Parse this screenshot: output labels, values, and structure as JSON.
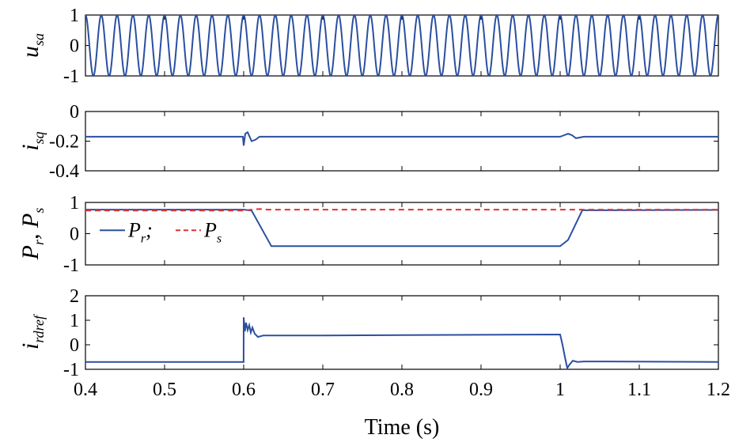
{
  "chart_data": [
    {
      "type": "line",
      "ylabel": "u",
      "ylabel_sub": "sa",
      "ylim": [
        -1,
        1
      ],
      "yticks": [
        "1",
        "0",
        "-1"
      ],
      "xlim": [
        0.4,
        1.2
      ],
      "series": [
        {
          "color": "#2b4fa0",
          "signal": "sinusoid",
          "frequency_hz": 50,
          "amplitude": 1,
          "x": [
            0.4,
            0.6,
            1.0,
            1.2
          ],
          "y": [
            0,
            0,
            0,
            0
          ]
        }
      ]
    },
    {
      "type": "line",
      "ylabel": "i",
      "ylabel_sub": "sq",
      "ylim": [
        -0.4,
        0
      ],
      "yticks": [
        "0",
        "-0.2",
        "-0.4"
      ],
      "xlim": [
        0.4,
        1.2
      ],
      "series": [
        {
          "color": "#2b4fa0",
          "x": [
            0.4,
            0.599,
            0.6,
            0.602,
            0.605,
            0.61,
            0.615,
            0.62,
            0.63,
            1.0,
            1.005,
            1.01,
            1.015,
            1.02,
            1.03,
            1.2
          ],
          "y": [
            -0.17,
            -0.17,
            -0.23,
            -0.15,
            -0.14,
            -0.2,
            -0.19,
            -0.17,
            -0.17,
            -0.17,
            -0.16,
            -0.15,
            -0.16,
            -0.18,
            -0.17,
            -0.17
          ]
        }
      ]
    },
    {
      "type": "line",
      "ylabel": "P",
      "ylabel_sub1": "r",
      "ylabel_sep": ", P",
      "ylabel_sub2": "s",
      "ylim": [
        -1,
        1
      ],
      "yticks": [
        "1",
        "0",
        "-1"
      ],
      "xlim": [
        0.4,
        1.2
      ],
      "legend": {
        "placement": "center-left",
        "entries": [
          "P",
          "P"
        ],
        "subs": [
          "r",
          "s"
        ],
        "separator": ";"
      },
      "series": [
        {
          "color": "#2b4fa0",
          "style": "solid",
          "x": [
            0.4,
            0.6,
            0.61,
            0.635,
            1.0,
            1.01,
            1.028,
            1.2
          ],
          "y": [
            0.77,
            0.77,
            0.74,
            -0.4,
            -0.4,
            -0.2,
            0.75,
            0.76
          ]
        },
        {
          "color": "#e03030",
          "style": "dashed",
          "x": [
            0.4,
            0.6,
            0.61,
            0.62,
            0.63,
            1.2
          ],
          "y": [
            0.74,
            0.74,
            0.77,
            0.79,
            0.77,
            0.77
          ]
        }
      ]
    },
    {
      "type": "line",
      "ylabel": "i",
      "ylabel_sub": "rdref",
      "ylim": [
        -1,
        2
      ],
      "yticks": [
        "2",
        "1",
        "0",
        "-1"
      ],
      "xlim": [
        0.4,
        1.2
      ],
      "xlabel": "Time (s)",
      "xticks": [
        "0.4",
        "0.5",
        "0.6",
        "0.7",
        "0.8",
        "0.9",
        "1",
        "1.1",
        "1.2"
      ],
      "series": [
        {
          "color": "#2b4fa0",
          "x": [
            0.4,
            0.5999,
            0.6,
            0.6015,
            0.603,
            0.605,
            0.607,
            0.609,
            0.611,
            0.614,
            0.618,
            0.625,
            0.7,
            1.0,
            1.003,
            1.006,
            1.009,
            1.012,
            1.016,
            1.022,
            1.03,
            1.2
          ],
          "y": [
            -0.7,
            -0.7,
            1.12,
            0.55,
            0.9,
            0.6,
            0.8,
            0.5,
            0.7,
            0.45,
            0.32,
            0.38,
            0.38,
            0.42,
            0.0,
            -0.5,
            -0.95,
            -0.8,
            -0.65,
            -0.7,
            -0.68,
            -0.7
          ]
        }
      ]
    }
  ]
}
